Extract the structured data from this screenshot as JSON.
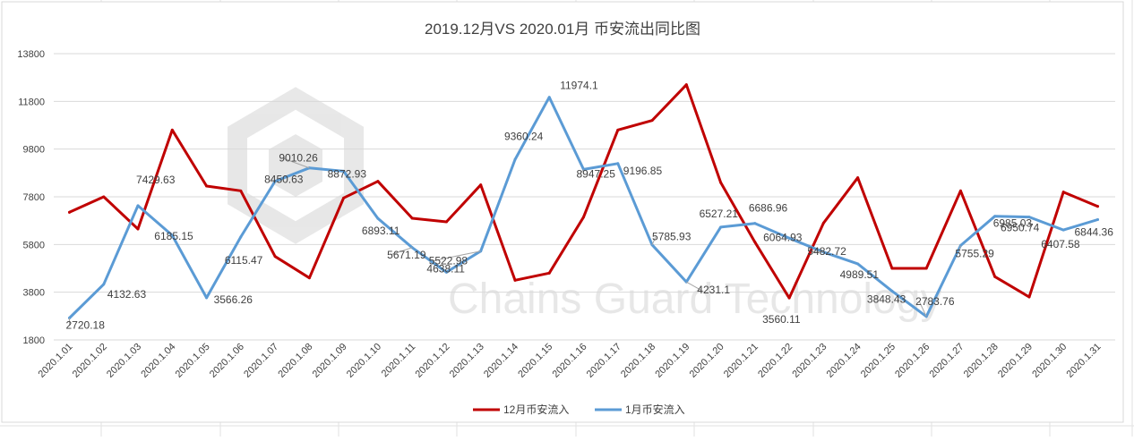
{
  "chart_data": {
    "type": "line",
    "title": "2019.12月VS 2020.01月 币安流出同比图",
    "xlabel": "",
    "ylabel": "",
    "categories": [
      "2020.1.01",
      "2020.1.02",
      "2020.1.03",
      "2020.1.04",
      "2020.1.05",
      "2020.1.06",
      "2020.1.07",
      "2020.1.08",
      "2020.1.09",
      "2020.1.10",
      "2020.1.11",
      "2020.1.12",
      "2020.1.13",
      "2020.1.14",
      "2020.1.15",
      "2020.1.16",
      "2020.1.17",
      "2020.1.18",
      "2020.1.19",
      "2020.1.20",
      "2020.1.21",
      "2020.1.22",
      "2020.1.23",
      "2020.1.24",
      "2020.1.25",
      "2020.1.26",
      "2020.1.27",
      "2020.1.28",
      "2020.1.29",
      "2020.1.30",
      "2020.1.31"
    ],
    "yticks": [
      1800,
      3800,
      5800,
      7800,
      9800,
      11800,
      13800
    ],
    "ylim": [
      1800,
      13800
    ],
    "grid": true,
    "legend_position": "bottom",
    "series": [
      {
        "name": "12月币安流入",
        "color": "#c00000",
        "values": [
          7150,
          7800,
          6450,
          10600,
          8250,
          8050,
          5300,
          4400,
          7750,
          8450,
          6900,
          6750,
          8300,
          4300,
          4600,
          6950,
          10600,
          11000,
          12500,
          8400,
          5900,
          3560.11,
          6700,
          8600,
          4800,
          4800,
          8050,
          4450,
          3600,
          8000,
          7400
        ]
      },
      {
        "name": "1月币安流入",
        "color": "#5b9bd5",
        "values": [
          2720.18,
          4132.63,
          7429.63,
          6185.15,
          3566.26,
          6115.47,
          8450.63,
          9010.26,
          8872.93,
          6893.11,
          5671.19,
          4638.11,
          5522.98,
          9360.24,
          11974.1,
          8947.25,
          9196.85,
          5785.93,
          4231.1,
          6527.21,
          6686.96,
          6064.93,
          5482.72,
          4989.51,
          3848.43,
          2783.76,
          5755.29,
          6985.03,
          6950.74,
          6407.58,
          6844.36
        ]
      }
    ],
    "data_labels": [
      {
        "text": "2720.18",
        "series": 1,
        "index": 0
      },
      {
        "text": "4132.63",
        "series": 1,
        "index": 1
      },
      {
        "text": "7429.63",
        "series": 1,
        "index": 2
      },
      {
        "text": "6185.15",
        "series": 1,
        "index": 3
      },
      {
        "text": "3566.26",
        "series": 1,
        "index": 4
      },
      {
        "text": "6115.47",
        "series": 1,
        "index": 5
      },
      {
        "text": "8450.63",
        "series": 1,
        "index": 6
      },
      {
        "text": "9010.26",
        "series": 1,
        "index": 7
      },
      {
        "text": "8872.93",
        "series": 1,
        "index": 8
      },
      {
        "text": "6893.11",
        "series": 1,
        "index": 9
      },
      {
        "text": "5671.19",
        "series": 1,
        "index": 10
      },
      {
        "text": "4638.11",
        "series": 1,
        "index": 11
      },
      {
        "text": "5522.98",
        "series": 1,
        "index": 12
      },
      {
        "text": "9360.24",
        "series": 1,
        "index": 13
      },
      {
        "text": "11974.1",
        "series": 1,
        "index": 14
      },
      {
        "text": "8947.25",
        "series": 1,
        "index": 15
      },
      {
        "text": "9196.85",
        "series": 1,
        "index": 16
      },
      {
        "text": "5785.93",
        "series": 1,
        "index": 17
      },
      {
        "text": "4231.1",
        "series": 1,
        "index": 18
      },
      {
        "text": "6527.21",
        "series": 1,
        "index": 19
      },
      {
        "text": "6686.96",
        "series": 1,
        "index": 20
      },
      {
        "text": "3560.11",
        "series": 0,
        "index": 21
      },
      {
        "text": "6064.93",
        "series": 1,
        "index": 21
      },
      {
        "text": "5482.72",
        "series": 1,
        "index": 22
      },
      {
        "text": "4989.51",
        "series": 1,
        "index": 23
      },
      {
        "text": "3848.43",
        "series": 1,
        "index": 24
      },
      {
        "text": "2783.76",
        "series": 1,
        "index": 25
      },
      {
        "text": "5755.29",
        "series": 1,
        "index": 26
      },
      {
        "text": "6985.03",
        "series": 1,
        "index": 27
      },
      {
        "text": "6950.74",
        "series": 1,
        "index": 28
      },
      {
        "text": "6407.58",
        "series": 1,
        "index": 29
      },
      {
        "text": "6844.36",
        "series": 1,
        "index": 30
      }
    ],
    "watermark": "Chains Guard Technology"
  }
}
